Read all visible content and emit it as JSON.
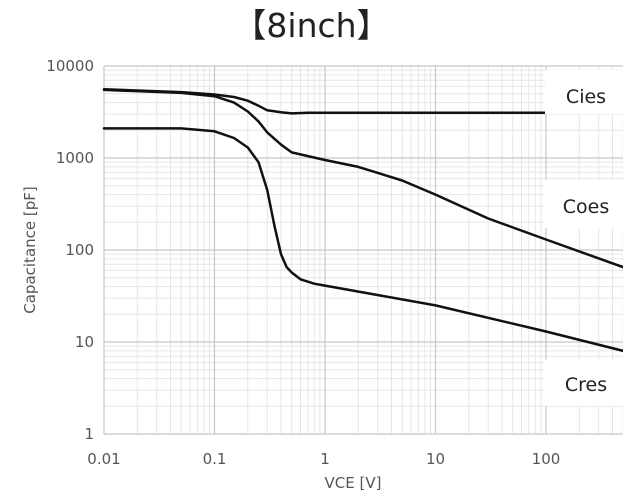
{
  "chart_data": {
    "type": "line",
    "title": "【8inch】",
    "xlabel": "VCE [V]",
    "ylabel": "Capacitance [pF]",
    "x_scale": "log",
    "y_scale": "log",
    "xlim": [
      0.01,
      500
    ],
    "ylim": [
      1,
      10000
    ],
    "x_ticks": [
      "0.01",
      "0.1",
      "1",
      "10",
      "100"
    ],
    "y_ticks": [
      "1",
      "10",
      "100",
      "1000",
      "10000"
    ],
    "grid": true,
    "line_color": "#111111",
    "series": [
      {
        "name": "Cies",
        "x": [
          0.01,
          0.05,
          0.1,
          0.15,
          0.2,
          0.25,
          0.3,
          0.4,
          0.5,
          0.7,
          1,
          10,
          100,
          500
        ],
        "y": [
          5600,
          5200,
          4900,
          4600,
          4200,
          3700,
          3300,
          3150,
          3050,
          3100,
          3100,
          3100,
          3100,
          3100
        ]
      },
      {
        "name": "Coes",
        "x": [
          0.01,
          0.05,
          0.1,
          0.15,
          0.2,
          0.25,
          0.3,
          0.4,
          0.5,
          0.7,
          1,
          2,
          5,
          10,
          30,
          100,
          500
        ],
        "y": [
          5500,
          5100,
          4700,
          4000,
          3200,
          2500,
          1900,
          1400,
          1150,
          1050,
          950,
          800,
          570,
          400,
          220,
          130,
          65
        ]
      },
      {
        "name": "Cres",
        "x": [
          0.01,
          0.05,
          0.1,
          0.15,
          0.2,
          0.25,
          0.3,
          0.35,
          0.4,
          0.45,
          0.5,
          0.6,
          0.8,
          1,
          10,
          100,
          500
        ],
        "y": [
          2100,
          2100,
          1950,
          1650,
          1300,
          900,
          450,
          180,
          90,
          65,
          57,
          48,
          43,
          41,
          25,
          13,
          8
        ]
      }
    ]
  }
}
